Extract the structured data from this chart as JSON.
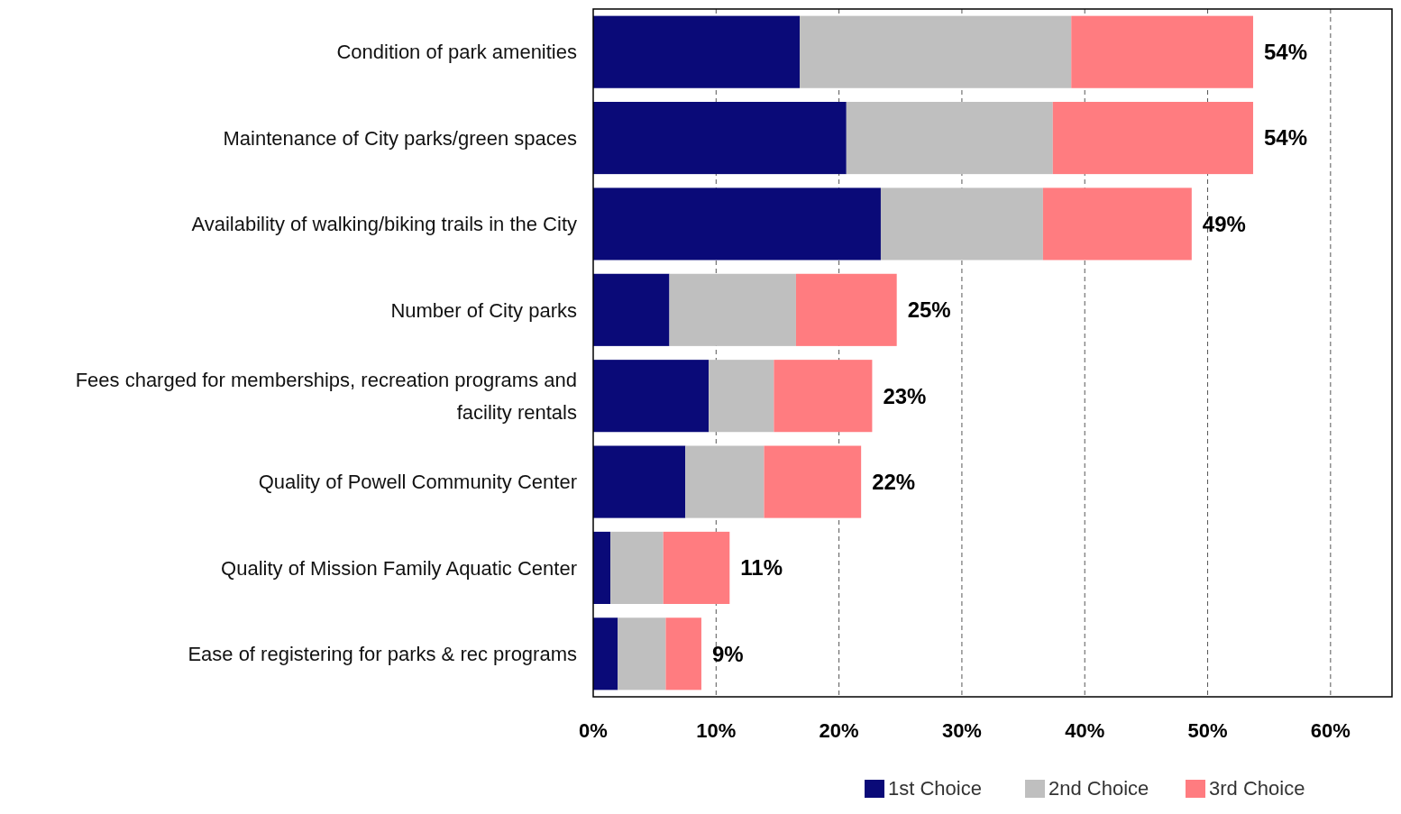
{
  "chart_data": {
    "type": "bar",
    "orientation": "horizontal",
    "stacked": true,
    "categories": [
      "Condition of park amenities",
      "Maintenance of City parks/green spaces",
      "Availability of walking/biking trails in the City",
      "Number of City parks",
      "Fees charged for memberships, recreation programs and facility rentals",
      "Quality of Powell Community Center",
      "Quality of Mission Family Aquatic Center",
      "Ease of registering for parks & rec programs"
    ],
    "series": [
      {
        "name": "1st Choice",
        "color": "#0a0a78",
        "values": [
          16.8,
          20.6,
          23.4,
          6.2,
          9.4,
          7.5,
          1.4,
          2.0
        ]
      },
      {
        "name": "2nd Choice",
        "color": "#bfbfbf",
        "values": [
          22.1,
          16.8,
          13.2,
          10.3,
          5.3,
          6.4,
          4.3,
          3.9
        ]
      },
      {
        "name": "3rd Choice",
        "color": "#ff7c80",
        "values": [
          14.8,
          16.3,
          12.1,
          8.2,
          8.0,
          7.9,
          5.4,
          2.9
        ]
      }
    ],
    "totals": [
      "54%",
      "54%",
      "49%",
      "25%",
      "23%",
      "22%",
      "11%",
      "9%"
    ],
    "xlim": [
      0,
      65
    ],
    "xticks": [
      {
        "value": 0,
        "label": "0%"
      },
      {
        "value": 10,
        "label": "10%"
      },
      {
        "value": 20,
        "label": "20%"
      },
      {
        "value": 30,
        "label": "30%"
      },
      {
        "value": 40,
        "label": "40%"
      },
      {
        "value": 50,
        "label": "50%"
      },
      {
        "value": 60,
        "label": "60%"
      }
    ],
    "grid": "x",
    "legend": "bottom"
  }
}
